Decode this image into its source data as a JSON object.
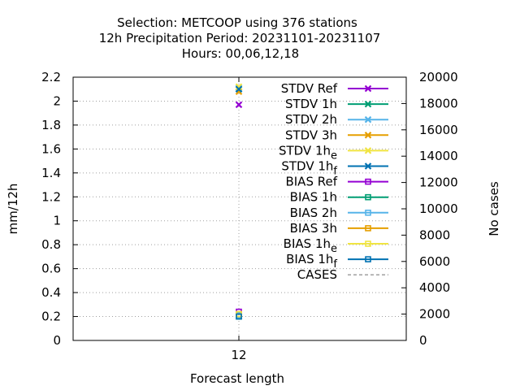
{
  "chart_data": {
    "type": "scatter",
    "title_lines": [
      "Selection: METCOOP using   376 stations",
      "12h Precipitation    Period: 20231101-20231107",
      "Hours:  00,06,12,18"
    ],
    "xlabel": "Forecast length",
    "ylabel": "mm/12h",
    "y2label": "No cases",
    "x_ticks": [
      "12"
    ],
    "x_value": 12,
    "ylim": [
      0,
      2.2
    ],
    "y_ticks": [
      "0",
      "0.2",
      "0.4",
      "0.6",
      "0.8",
      "1",
      "1.2",
      "1.4",
      "1.6",
      "1.8",
      "2",
      "2.2"
    ],
    "y2lim": [
      0,
      20000
    ],
    "y2_ticks": [
      "0",
      "2000",
      "4000",
      "6000",
      "8000",
      "10000",
      "12000",
      "14000",
      "16000",
      "18000",
      "20000"
    ],
    "grid": true,
    "legend_position": "top-right",
    "series": [
      {
        "name": "STDV Ref",
        "sub": "",
        "color": "#9400d3",
        "marker": "x",
        "dashed": false,
        "value": 1.97
      },
      {
        "name": "STDV 1h",
        "sub": "",
        "color": "#009e73",
        "marker": "x",
        "dashed": false,
        "value": 2.1
      },
      {
        "name": "STDV 2h",
        "sub": "",
        "color": "#56b4e9",
        "marker": "x",
        "dashed": false,
        "value": 2.11
      },
      {
        "name": "STDV 3h",
        "sub": "",
        "color": "#e69f00",
        "marker": "x",
        "dashed": false,
        "value": 2.08
      },
      {
        "name": "STDV 1h",
        "sub": "e",
        "color": "#f0e442",
        "marker": "x",
        "dashed": false,
        "value": 2.12
      },
      {
        "name": "STDV 1h",
        "sub": "f",
        "color": "#0072b2",
        "marker": "x",
        "dashed": false,
        "value": 2.1
      },
      {
        "name": "BIAS Ref",
        "sub": "",
        "color": "#9400d3",
        "marker": "s",
        "dashed": false,
        "value": 0.24
      },
      {
        "name": "BIAS 1h",
        "sub": "",
        "color": "#009e73",
        "marker": "s",
        "dashed": false,
        "value": 0.2
      },
      {
        "name": "BIAS 2h",
        "sub": "",
        "color": "#56b4e9",
        "marker": "s",
        "dashed": false,
        "value": 0.21
      },
      {
        "name": "BIAS 3h",
        "sub": "",
        "color": "#e69f00",
        "marker": "s",
        "dashed": false,
        "value": 0.22
      },
      {
        "name": "BIAS 1h",
        "sub": "e",
        "color": "#f0e442",
        "marker": "s",
        "dashed": false,
        "value": 0.22
      },
      {
        "name": "BIAS 1h",
        "sub": "f",
        "color": "#0072b2",
        "marker": "s",
        "dashed": false,
        "value": 0.2
      },
      {
        "name": "CASES",
        "sub": "",
        "color": "#a0a0a0",
        "marker": "none",
        "dashed": true,
        "value": null
      }
    ]
  }
}
